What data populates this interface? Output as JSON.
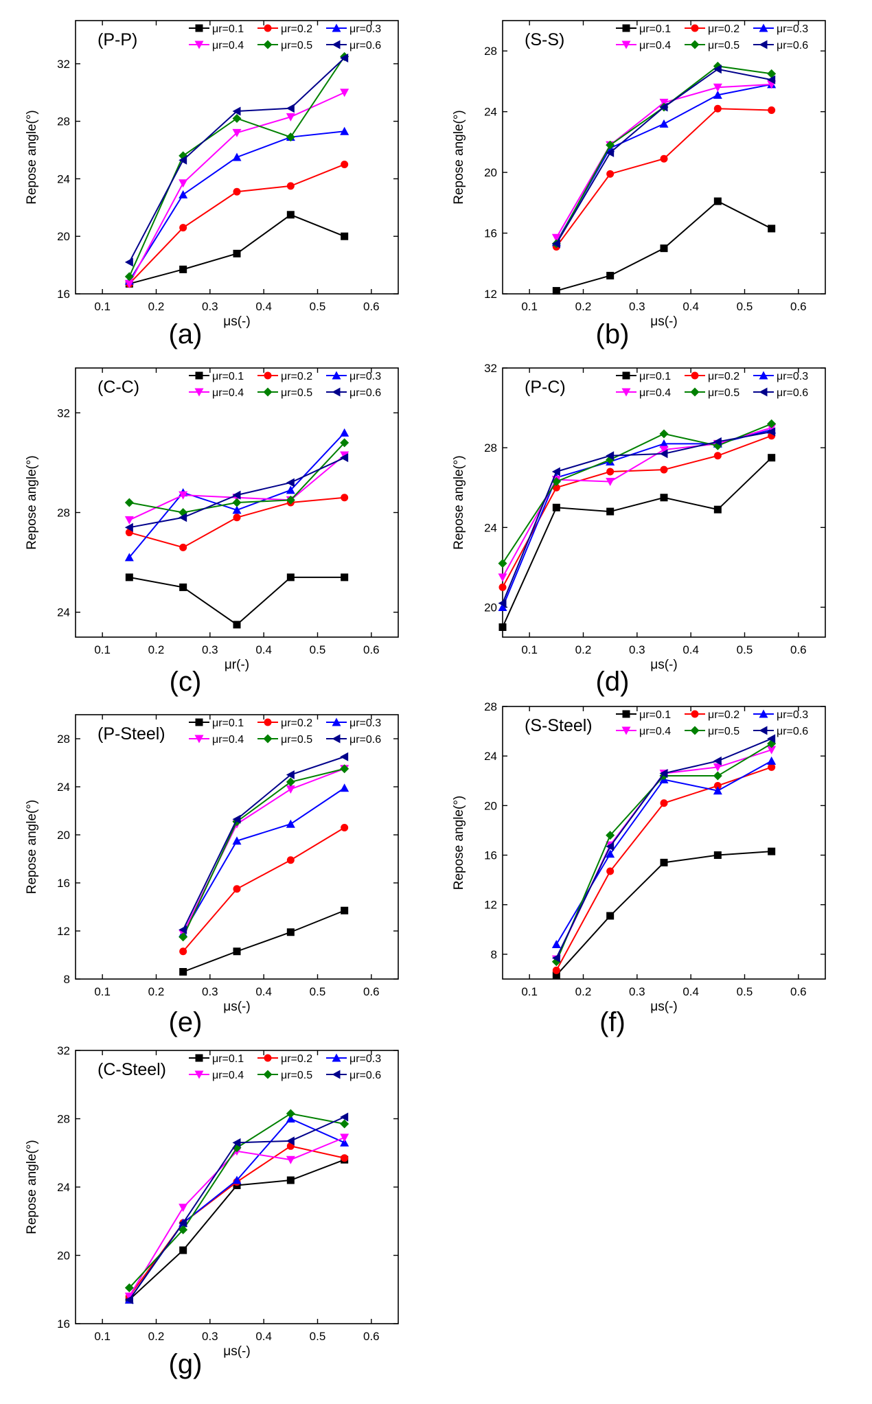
{
  "figure": {
    "description_labels": [
      "(a)",
      "(b)",
      "(c)",
      "(d)",
      "(e)",
      "(f)",
      "(g)"
    ]
  },
  "chart_data": [
    {
      "id": "a",
      "type": "line",
      "panel_title": "(P-P)",
      "subfig_label": "(a)",
      "xlabel": "μs(-)",
      "ylabel": "Repose angle(°)",
      "xlim": [
        0.05,
        0.65
      ],
      "ylim": [
        16,
        35
      ],
      "xticks": [
        "0.1",
        "0.2",
        "0.3",
        "0.4",
        "0.5",
        "0.6"
      ],
      "xtick_values": [
        0.1,
        0.2,
        0.3,
        0.4,
        0.5,
        0.6
      ],
      "yticks": [
        "16",
        "20",
        "24",
        "28",
        "32"
      ],
      "ytick_values": [
        16,
        20,
        24,
        28,
        32
      ],
      "x": [
        0.15,
        0.25,
        0.35,
        0.45,
        0.55
      ],
      "series": [
        {
          "name": "μr=0.1",
          "color": "#000000",
          "marker": "square",
          "values": [
            16.7,
            17.7,
            18.8,
            21.5,
            20.0
          ]
        },
        {
          "name": "μr=0.2",
          "color": "#ff0000",
          "marker": "circle",
          "values": [
            16.7,
            20.6,
            23.1,
            23.5,
            25.0
          ]
        },
        {
          "name": "μr=0.3",
          "color": "#0000ff",
          "marker": "tri-up",
          "values": [
            16.9,
            22.9,
            25.5,
            26.9,
            27.3
          ]
        },
        {
          "name": "μr=0.4",
          "color": "#ff00ff",
          "marker": "tri-down",
          "values": [
            16.7,
            23.7,
            27.2,
            28.3,
            30.0
          ]
        },
        {
          "name": "μr=0.5",
          "color": "#008000",
          "marker": "diamond",
          "values": [
            17.2,
            25.6,
            28.2,
            26.9,
            32.5
          ]
        },
        {
          "name": "μr=0.6",
          "color": "#00008b",
          "marker": "tri-left",
          "values": [
            18.2,
            25.3,
            28.7,
            28.9,
            32.4
          ]
        }
      ]
    },
    {
      "id": "b",
      "type": "line",
      "panel_title": "(S-S)",
      "subfig_label": "(b)",
      "xlabel": "μs(-)",
      "ylabel": "Repose angle(°)",
      "xlim": [
        0.05,
        0.65
      ],
      "ylim": [
        12,
        30
      ],
      "xticks": [
        "0.1",
        "0.2",
        "0.3",
        "0.4",
        "0.5",
        "0.6"
      ],
      "xtick_values": [
        0.1,
        0.2,
        0.3,
        0.4,
        0.5,
        0.6
      ],
      "yticks": [
        "12",
        "16",
        "20",
        "24",
        "28"
      ],
      "ytick_values": [
        12,
        16,
        20,
        24,
        28
      ],
      "x": [
        0.15,
        0.25,
        0.35,
        0.45,
        0.55
      ],
      "series": [
        {
          "name": "μr=0.1",
          "color": "#000000",
          "marker": "square",
          "values": [
            12.2,
            13.2,
            15.0,
            18.1,
            16.3
          ]
        },
        {
          "name": "μr=0.2",
          "color": "#ff0000",
          "marker": "circle",
          "values": [
            15.1,
            19.9,
            20.9,
            24.2,
            24.1
          ]
        },
        {
          "name": "μr=0.3",
          "color": "#0000ff",
          "marker": "tri-up",
          "values": [
            15.4,
            21.6,
            23.2,
            25.1,
            25.8
          ]
        },
        {
          "name": "μr=0.4",
          "color": "#ff00ff",
          "marker": "tri-down",
          "values": [
            15.7,
            21.8,
            24.6,
            25.6,
            25.8
          ]
        },
        {
          "name": "μr=0.5",
          "color": "#008000",
          "marker": "diamond",
          "values": [
            15.3,
            21.8,
            24.3,
            27.0,
            26.5
          ]
        },
        {
          "name": "μr=0.6",
          "color": "#00008b",
          "marker": "tri-left",
          "values": [
            15.3,
            21.3,
            24.3,
            26.8,
            26.1
          ]
        }
      ]
    },
    {
      "id": "c",
      "type": "line",
      "panel_title": "(C-C)",
      "subfig_label": "(c)",
      "xlabel": "μr(-)",
      "ylabel": "Repose angle(°)",
      "xlim": [
        0.05,
        0.65
      ],
      "ylim": [
        23,
        33.8
      ],
      "xticks": [
        "0.1",
        "0.2",
        "0.3",
        "0.4",
        "0.5",
        "0.6"
      ],
      "xtick_values": [
        0.1,
        0.2,
        0.3,
        0.4,
        0.5,
        0.6
      ],
      "yticks": [
        "24",
        "28",
        "32"
      ],
      "ytick_values": [
        24,
        28,
        32
      ],
      "x": [
        0.15,
        0.25,
        0.35,
        0.45,
        0.55
      ],
      "series": [
        {
          "name": "μr=0.1",
          "color": "#000000",
          "marker": "square",
          "values": [
            25.4,
            25.0,
            23.5,
            25.4,
            25.4
          ]
        },
        {
          "name": "μr=0.2",
          "color": "#ff0000",
          "marker": "circle",
          "values": [
            27.2,
            26.6,
            27.8,
            28.4,
            28.6
          ]
        },
        {
          "name": "μr=0.3",
          "color": "#0000ff",
          "marker": "tri-up",
          "values": [
            26.2,
            28.8,
            28.1,
            28.9,
            31.2
          ]
        },
        {
          "name": "μr=0.4",
          "color": "#ff00ff",
          "marker": "tri-down",
          "values": [
            27.7,
            28.7,
            28.6,
            28.5,
            30.3
          ]
        },
        {
          "name": "μr=0.5",
          "color": "#008000",
          "marker": "diamond",
          "values": [
            28.4,
            28.0,
            28.4,
            28.5,
            30.8
          ]
        },
        {
          "name": "μr=0.6",
          "color": "#00008b",
          "marker": "tri-left",
          "values": [
            27.4,
            27.8,
            28.7,
            29.2,
            30.2
          ]
        }
      ]
    },
    {
      "id": "d",
      "type": "line",
      "panel_title": "(P-C)",
      "subfig_label": "(d)",
      "xlabel": "μs(-)",
      "ylabel": "Repose angle(°)",
      "xlim": [
        0.05,
        0.65
      ],
      "ylim": [
        18.5,
        32
      ],
      "xticks": [
        "0.1",
        "0.2",
        "0.3",
        "0.4",
        "0.5",
        "0.6"
      ],
      "xtick_values": [
        0.1,
        0.2,
        0.3,
        0.4,
        0.5,
        0.6
      ],
      "yticks": [
        "20",
        "24",
        "28",
        "32"
      ],
      "ytick_values": [
        20,
        24,
        28,
        32
      ],
      "x": [
        0.05,
        0.15,
        0.25,
        0.35,
        0.45,
        0.55
      ],
      "series": [
        {
          "name": "μr=0.1",
          "color": "#000000",
          "marker": "square",
          "values": [
            19.0,
            25.0,
            24.8,
            25.5,
            24.9,
            27.5
          ]
        },
        {
          "name": "μr=0.2",
          "color": "#ff0000",
          "marker": "circle",
          "values": [
            21.0,
            26.0,
            26.8,
            26.9,
            27.6,
            28.6
          ]
        },
        {
          "name": "μr=0.3",
          "color": "#0000ff",
          "marker": "tri-up",
          "values": [
            20.0,
            26.5,
            27.3,
            28.2,
            28.2,
            28.9
          ]
        },
        {
          "name": "μr=0.4",
          "color": "#ff00ff",
          "marker": "tri-down",
          "values": [
            21.5,
            26.4,
            26.3,
            27.9,
            28.2,
            29.0
          ]
        },
        {
          "name": "μr=0.5",
          "color": "#008000",
          "marker": "diamond",
          "values": [
            22.2,
            26.3,
            27.4,
            28.7,
            28.1,
            29.2
          ]
        },
        {
          "name": "μr=0.6",
          "color": "#00008b",
          "marker": "tri-left",
          "values": [
            20.2,
            26.8,
            27.6,
            27.7,
            28.3,
            28.8
          ]
        }
      ]
    },
    {
      "id": "e",
      "type": "line",
      "panel_title": "(P-Steel)",
      "subfig_label": "(e)",
      "xlabel": "μs(-)",
      "ylabel": "Repose angle(°)",
      "xlim": [
        0.05,
        0.65
      ],
      "ylim": [
        8,
        30
      ],
      "xticks": [
        "0.1",
        "0.2",
        "0.3",
        "0.4",
        "0.5",
        "0.6"
      ],
      "xtick_values": [
        0.1,
        0.2,
        0.3,
        0.4,
        0.5,
        0.6
      ],
      "yticks": [
        "8",
        "12",
        "16",
        "20",
        "24",
        "28"
      ],
      "ytick_values": [
        8,
        12,
        16,
        20,
        24,
        28
      ],
      "x": [
        0.25,
        0.35,
        0.45,
        0.55
      ],
      "series": [
        {
          "name": "μr=0.1",
          "color": "#000000",
          "marker": "square",
          "values": [
            8.6,
            10.3,
            11.9,
            13.7
          ]
        },
        {
          "name": "μr=0.2",
          "color": "#ff0000",
          "marker": "circle",
          "values": [
            10.3,
            15.5,
            17.9,
            20.6
          ]
        },
        {
          "name": "μr=0.3",
          "color": "#0000ff",
          "marker": "tri-up",
          "values": [
            11.8,
            19.5,
            20.9,
            23.9
          ]
        },
        {
          "name": "μr=0.4",
          "color": "#ff00ff",
          "marker": "tri-down",
          "values": [
            11.8,
            20.9,
            23.8,
            25.5
          ]
        },
        {
          "name": "μr=0.5",
          "color": "#008000",
          "marker": "diamond",
          "values": [
            11.5,
            21.1,
            24.4,
            25.5
          ]
        },
        {
          "name": "μr=0.6",
          "color": "#00008b",
          "marker": "tri-left",
          "values": [
            12.1,
            21.3,
            25.0,
            26.5
          ]
        }
      ]
    },
    {
      "id": "f",
      "type": "line",
      "panel_title": "(S-Steel)",
      "subfig_label": "(f)",
      "xlabel": "μs(-)",
      "ylabel": "Repose angle(°)",
      "xlim": [
        0.05,
        0.65
      ],
      "ylim": [
        6,
        28
      ],
      "xticks": [
        "0.1",
        "0.2",
        "0.3",
        "0.4",
        "0.5",
        "0.6"
      ],
      "xtick_values": [
        0.1,
        0.2,
        0.3,
        0.4,
        0.5,
        0.6
      ],
      "yticks": [
        "8",
        "12",
        "16",
        "20",
        "24",
        "28"
      ],
      "ytick_values": [
        8,
        12,
        16,
        20,
        24,
        28
      ],
      "x": [
        0.15,
        0.25,
        0.35,
        0.45,
        0.55
      ],
      "series": [
        {
          "name": "μr=0.1",
          "color": "#000000",
          "marker": "square",
          "values": [
            6.3,
            11.1,
            15.4,
            16.0,
            16.3
          ]
        },
        {
          "name": "μr=0.2",
          "color": "#ff0000",
          "marker": "circle",
          "values": [
            6.7,
            14.7,
            20.2,
            21.6,
            23.1
          ]
        },
        {
          "name": "μr=0.3",
          "color": "#0000ff",
          "marker": "tri-up",
          "values": [
            8.8,
            16.1,
            22.1,
            21.2,
            23.6
          ]
        },
        {
          "name": "μr=0.4",
          "color": "#ff00ff",
          "marker": "tri-down",
          "values": [
            7.6,
            16.8,
            22.6,
            23.1,
            24.5
          ]
        },
        {
          "name": "μr=0.5",
          "color": "#008000",
          "marker": "diamond",
          "values": [
            7.4,
            17.6,
            22.4,
            22.4,
            25.0
          ]
        },
        {
          "name": "μr=0.6",
          "color": "#00008b",
          "marker": "tri-left",
          "values": [
            7.7,
            16.7,
            22.6,
            23.6,
            25.4
          ]
        }
      ]
    },
    {
      "id": "g",
      "type": "line",
      "panel_title": "(C-Steel)",
      "subfig_label": "(g)",
      "xlabel": "μs(-)",
      "ylabel": "Repose angle(°)",
      "xlim": [
        0.05,
        0.65
      ],
      "ylim": [
        16,
        32
      ],
      "xticks": [
        "0.1",
        "0.2",
        "0.3",
        "0.4",
        "0.5",
        "0.6"
      ],
      "xtick_values": [
        0.1,
        0.2,
        0.3,
        0.4,
        0.5,
        0.6
      ],
      "yticks": [
        "16",
        "20",
        "24",
        "28",
        "32"
      ],
      "ytick_values": [
        16,
        20,
        24,
        28,
        32
      ],
      "x": [
        0.15,
        0.25,
        0.35,
        0.45,
        0.55
      ],
      "series": [
        {
          "name": "μr=0.1",
          "color": "#000000",
          "marker": "square",
          "values": [
            17.4,
            20.3,
            24.1,
            24.4,
            25.6
          ]
        },
        {
          "name": "μr=0.2",
          "color": "#ff0000",
          "marker": "circle",
          "values": [
            17.6,
            21.9,
            24.3,
            26.4,
            25.7
          ]
        },
        {
          "name": "μr=0.3",
          "color": "#0000ff",
          "marker": "tri-up",
          "values": [
            17.4,
            21.9,
            24.4,
            28.0,
            26.6
          ]
        },
        {
          "name": "μr=0.4",
          "color": "#ff00ff",
          "marker": "tri-down",
          "values": [
            17.6,
            22.8,
            26.1,
            25.6,
            26.9
          ]
        },
        {
          "name": "μr=0.5",
          "color": "#008000",
          "marker": "diamond",
          "values": [
            18.1,
            21.5,
            26.3,
            28.3,
            27.7
          ]
        },
        {
          "name": "μr=0.6",
          "color": "#00008b",
          "marker": "tri-left",
          "values": [
            17.4,
            21.9,
            26.6,
            26.7,
            28.1
          ]
        }
      ]
    }
  ]
}
